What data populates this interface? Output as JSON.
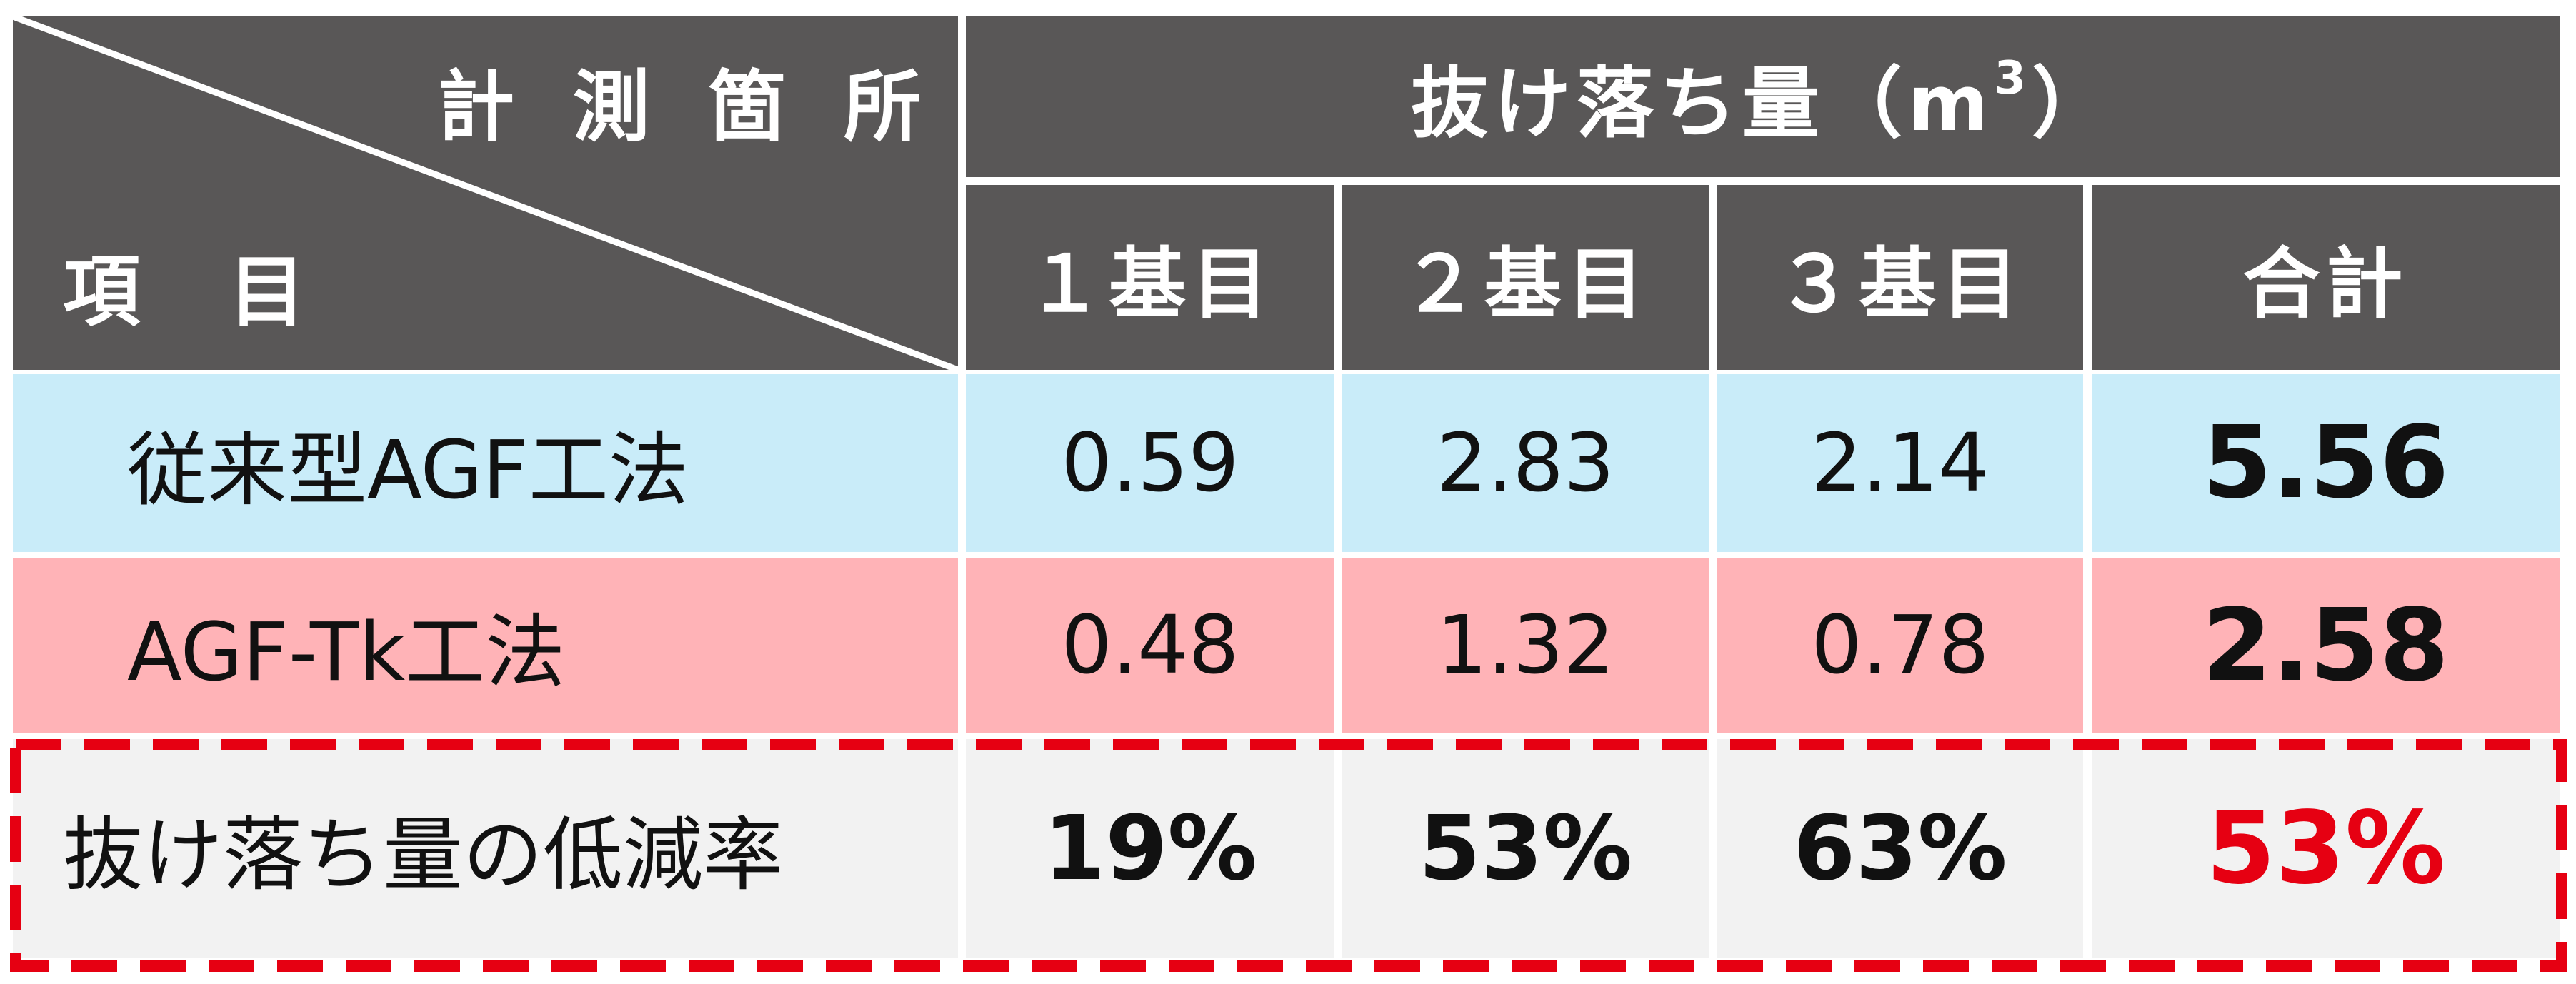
{
  "header": {
    "measure_location": "計 測 箇 所",
    "item": "項　目",
    "group_title": "抜け落ち量（m",
    "group_title_sup": "3",
    "group_title_end": "）",
    "columns": [
      "１基目",
      "２基目",
      "３基目",
      "合計"
    ]
  },
  "table": {
    "rows": [
      {
        "label": "従来型AGF工法",
        "values": [
          "0.59",
          "2.83",
          "2.14",
          "5.56"
        ]
      },
      {
        "label": "AGF-Tk工法",
        "values": [
          "0.48",
          "1.32",
          "0.78",
          "2.58"
        ]
      },
      {
        "label": "抜け落ち量の低減率",
        "values": [
          "19%",
          "53%",
          "63%",
          "53%"
        ]
      }
    ]
  }
}
